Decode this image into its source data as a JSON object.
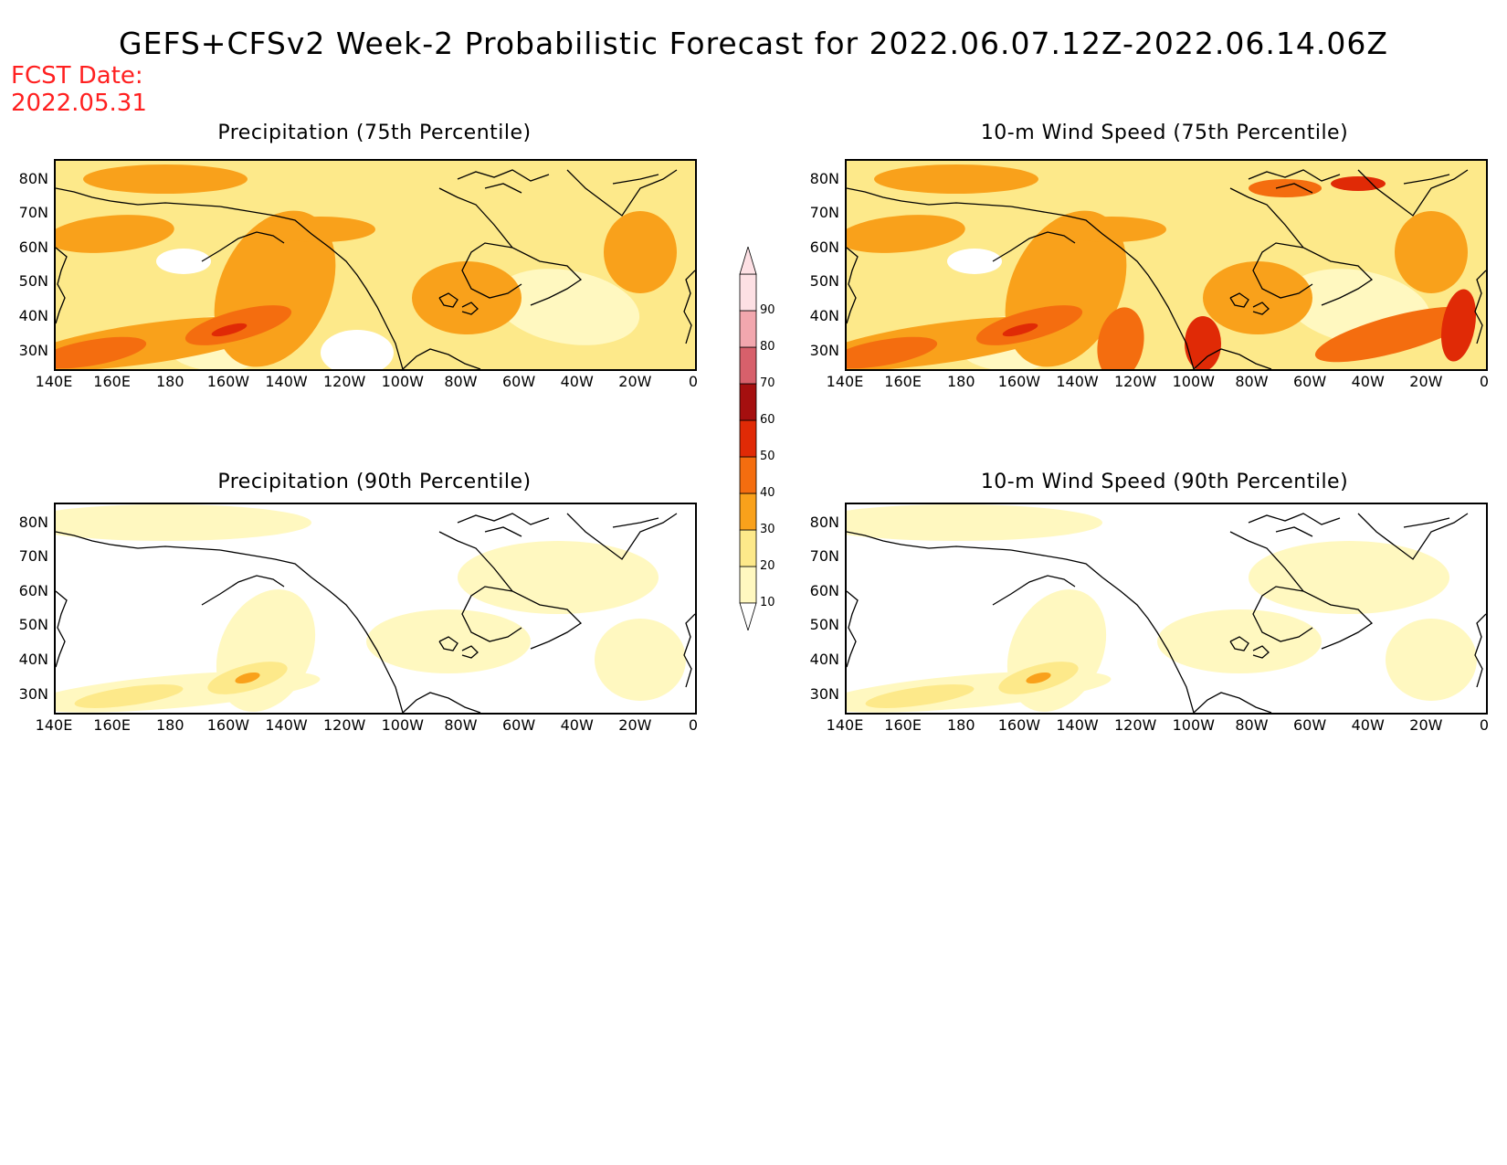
{
  "header": {
    "title": "GEFS+CFSv2 Week-2 Probabilistic Forecast for 2022.06.07.12Z-2022.06.14.06Z",
    "fcst_label": "FCST Date:",
    "fcst_date": "2022.05.31"
  },
  "axes": {
    "lat_labels": [
      "80N",
      "70N",
      "60N",
      "50N",
      "40N",
      "30N"
    ],
    "lon_labels": [
      "140E",
      "160E",
      "180",
      "160W",
      "140W",
      "120W",
      "100W",
      "80W",
      "60W",
      "40W",
      "20W",
      "0"
    ]
  },
  "colorbar": {
    "levels": [
      "10",
      "20",
      "30",
      "40",
      "50",
      "60",
      "70",
      "80",
      "90"
    ],
    "colors": [
      "#fff8c0",
      "#fde98a",
      "#f9a11b",
      "#f46d0f",
      "#e02a06",
      "#a50f0f",
      "#d7606b",
      "#f2a7ae",
      "#fde0e4"
    ]
  },
  "panels": [
    {
      "id": "precip75",
      "title": "Precipitation (75th Percentile)",
      "intensity": "high"
    },
    {
      "id": "wind75",
      "title": "10-m Wind Speed (75th Percentile)",
      "intensity": "high"
    },
    {
      "id": "precip90",
      "title": "Precipitation (90th Percentile)",
      "intensity": "low"
    },
    {
      "id": "wind90",
      "title": "10-m Wind Speed (90th Percentile)",
      "intensity": "low"
    }
  ]
}
